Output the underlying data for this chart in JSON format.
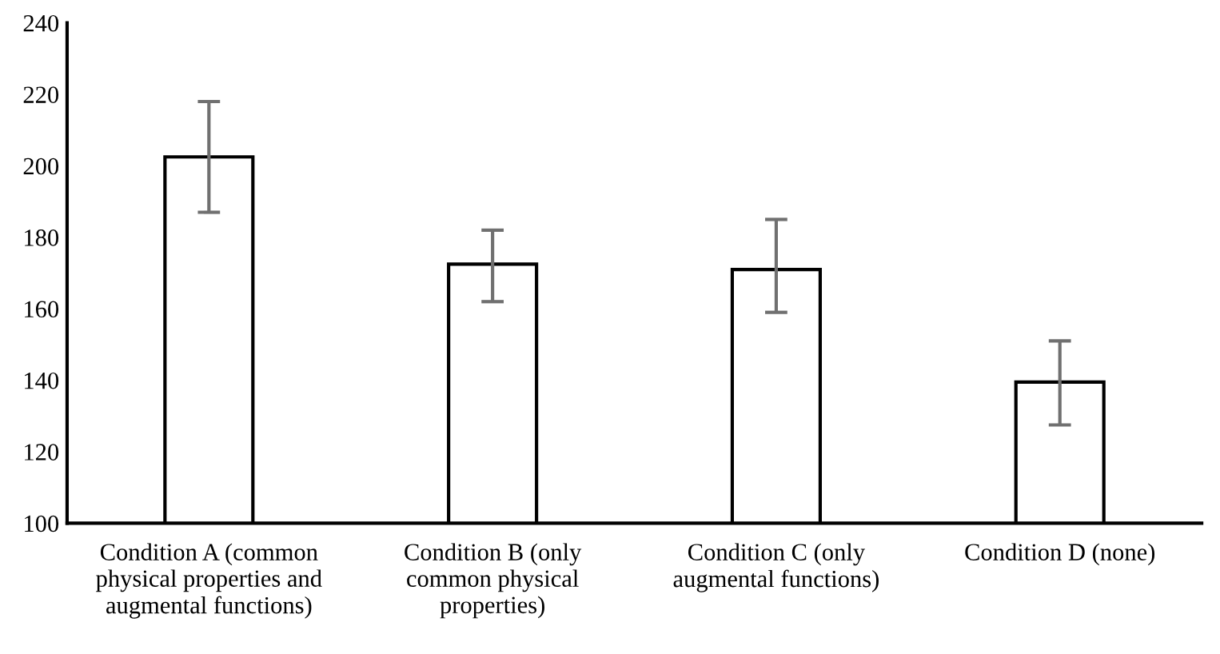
{
  "chart_data": {
    "type": "bar",
    "categories": [
      "Condition A (common physical properties and augmental functions)",
      "Condition B (only common physical properties)",
      "Condition C (only augmental functions)",
      "Condition D (none)"
    ],
    "values": [
      202.5,
      172.5,
      171,
      139.5
    ],
    "errors": [
      [
        187,
        218
      ],
      [
        162,
        182
      ],
      [
        159,
        185
      ],
      [
        127.5,
        151
      ]
    ],
    "color": "#ffffff",
    "ylim": [
      100,
      240
    ],
    "yticks": [
      100,
      120,
      140,
      160,
      180,
      200,
      220,
      240
    ],
    "grid": false
  }
}
